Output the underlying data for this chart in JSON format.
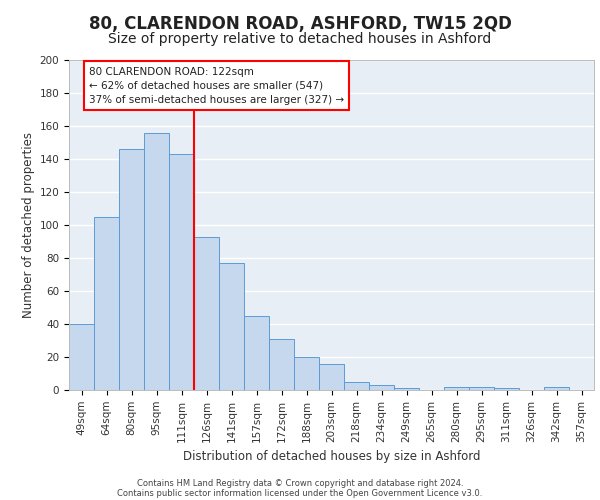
{
  "title": "80, CLARENDON ROAD, ASHFORD, TW15 2QD",
  "subtitle": "Size of property relative to detached houses in Ashford",
  "xlabel": "Distribution of detached houses by size in Ashford",
  "ylabel": "Number of detached properties",
  "bar_labels": [
    "49sqm",
    "64sqm",
    "80sqm",
    "95sqm",
    "111sqm",
    "126sqm",
    "141sqm",
    "157sqm",
    "172sqm",
    "188sqm",
    "203sqm",
    "218sqm",
    "234sqm",
    "249sqm",
    "265sqm",
    "280sqm",
    "295sqm",
    "311sqm",
    "326sqm",
    "342sqm",
    "357sqm"
  ],
  "bar_values": [
    40,
    105,
    146,
    156,
    143,
    93,
    77,
    45,
    31,
    20,
    16,
    5,
    3,
    1,
    0,
    2,
    2,
    1,
    0,
    2,
    0
  ],
  "bar_color": "#c5d8ed",
  "bar_edge_color": "#5b9bd5",
  "bg_color": "#e8eef5",
  "grid_color": "#ffffff",
  "vline_x": 4.5,
  "vline_color": "red",
  "annotation_title": "80 CLARENDON ROAD: 122sqm",
  "annotation_line1": "← 62% of detached houses are smaller (547)",
  "annotation_line2": "37% of semi-detached houses are larger (327) →",
  "annotation_box_color": "#ffffff",
  "annotation_box_edge": "red",
  "footer1": "Contains HM Land Registry data © Crown copyright and database right 2024.",
  "footer2": "Contains public sector information licensed under the Open Government Licence v3.0.",
  "ylim": [
    0,
    200
  ],
  "yticks": [
    0,
    20,
    40,
    60,
    80,
    100,
    120,
    140,
    160,
    180,
    200
  ],
  "title_fontsize": 12,
  "subtitle_fontsize": 10,
  "axis_fontsize": 8.5,
  "tick_fontsize": 7.5
}
